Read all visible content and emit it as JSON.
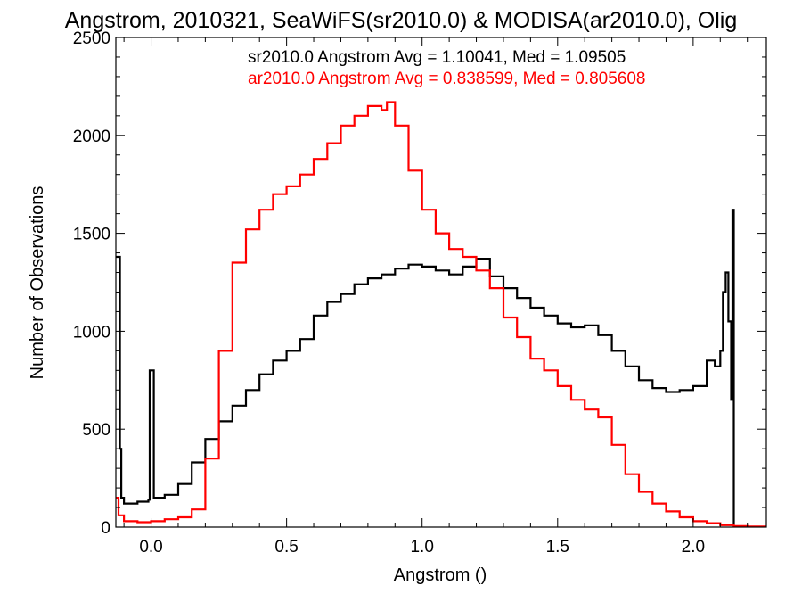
{
  "chart_data": {
    "type": "line",
    "subtype": "step-histogram",
    "title": "Angstrom, 2010321, SeaWiFS(sr2010.0) & MODISA(ar2010.0), Olig",
    "xlabel": "Angstrom ()",
    "ylabel": "Number of Observations",
    "xlim": [
      -0.13,
      2.27
    ],
    "ylim": [
      0,
      2500
    ],
    "x_ticks": [
      0.0,
      0.5,
      1.0,
      1.5,
      2.0
    ],
    "x_tick_labels": [
      "0.0",
      "0.5",
      "1.0",
      "1.5",
      "2.0"
    ],
    "y_ticks": [
      0,
      500,
      1000,
      1500,
      2000,
      2500
    ],
    "y_tick_labels": [
      "0",
      "500",
      "1000",
      "1500",
      "2000",
      "2500"
    ],
    "grid": false,
    "annotations": [
      {
        "text": "sr2010.0 Angstrom Avg = 1.10041, Med = 1.09505",
        "color": "#000000"
      },
      {
        "text": "ar2010.0 Angstrom Avg = 0.838599, Med = 0.805608",
        "color": "#ff0000"
      }
    ],
    "series": [
      {
        "color": "#000000",
        "points": [
          [
            -0.13,
            1380
          ],
          [
            -0.12,
            1380
          ],
          [
            -0.115,
            400
          ],
          [
            -0.11,
            150
          ],
          [
            -0.1,
            120
          ],
          [
            -0.05,
            130
          ],
          [
            -0.01,
            140
          ],
          [
            -0.005,
            800
          ],
          [
            0.005,
            800
          ],
          [
            0.01,
            150
          ],
          [
            0.05,
            165
          ],
          [
            0.1,
            220
          ],
          [
            0.15,
            330
          ],
          [
            0.2,
            450
          ],
          [
            0.25,
            540
          ],
          [
            0.3,
            620
          ],
          [
            0.35,
            700
          ],
          [
            0.4,
            780
          ],
          [
            0.45,
            850
          ],
          [
            0.5,
            900
          ],
          [
            0.55,
            960
          ],
          [
            0.6,
            1080
          ],
          [
            0.65,
            1150
          ],
          [
            0.7,
            1190
          ],
          [
            0.75,
            1240
          ],
          [
            0.8,
            1270
          ],
          [
            0.85,
            1290
          ],
          [
            0.9,
            1320
          ],
          [
            0.95,
            1340
          ],
          [
            1.0,
            1330
          ],
          [
            1.05,
            1310
          ],
          [
            1.1,
            1290
          ],
          [
            1.15,
            1330
          ],
          [
            1.2,
            1370
          ],
          [
            1.25,
            1280
          ],
          [
            1.3,
            1220
          ],
          [
            1.35,
            1170
          ],
          [
            1.4,
            1120
          ],
          [
            1.45,
            1080
          ],
          [
            1.5,
            1040
          ],
          [
            1.55,
            1020
          ],
          [
            1.6,
            1030
          ],
          [
            1.65,
            980
          ],
          [
            1.7,
            900
          ],
          [
            1.75,
            820
          ],
          [
            1.8,
            750
          ],
          [
            1.85,
            710
          ],
          [
            1.9,
            690
          ],
          [
            1.95,
            700
          ],
          [
            2.0,
            720
          ],
          [
            2.05,
            850
          ],
          [
            2.08,
            820
          ],
          [
            2.1,
            900
          ],
          [
            2.11,
            1200
          ],
          [
            2.12,
            1300
          ],
          [
            2.13,
            1050
          ],
          [
            2.14,
            650
          ],
          [
            2.145,
            1620
          ],
          [
            2.15,
            0
          ]
        ]
      },
      {
        "color": "#ff0000",
        "points": [
          [
            -0.13,
            150
          ],
          [
            -0.12,
            60
          ],
          [
            -0.1,
            30
          ],
          [
            -0.05,
            25
          ],
          [
            0.0,
            30
          ],
          [
            0.05,
            40
          ],
          [
            0.1,
            50
          ],
          [
            0.15,
            90
          ],
          [
            0.2,
            350
          ],
          [
            0.25,
            900
          ],
          [
            0.3,
            1350
          ],
          [
            0.35,
            1520
          ],
          [
            0.4,
            1620
          ],
          [
            0.45,
            1700
          ],
          [
            0.5,
            1740
          ],
          [
            0.55,
            1800
          ],
          [
            0.6,
            1880
          ],
          [
            0.65,
            1960
          ],
          [
            0.7,
            2050
          ],
          [
            0.75,
            2100
          ],
          [
            0.8,
            2150
          ],
          [
            0.85,
            2130
          ],
          [
            0.87,
            2170
          ],
          [
            0.9,
            2050
          ],
          [
            0.95,
            1820
          ],
          [
            1.0,
            1620
          ],
          [
            1.05,
            1500
          ],
          [
            1.1,
            1420
          ],
          [
            1.15,
            1380
          ],
          [
            1.2,
            1310
          ],
          [
            1.25,
            1220
          ],
          [
            1.3,
            1070
          ],
          [
            1.35,
            970
          ],
          [
            1.4,
            860
          ],
          [
            1.45,
            800
          ],
          [
            1.5,
            720
          ],
          [
            1.55,
            650
          ],
          [
            1.6,
            600
          ],
          [
            1.65,
            560
          ],
          [
            1.7,
            420
          ],
          [
            1.75,
            270
          ],
          [
            1.8,
            180
          ],
          [
            1.85,
            120
          ],
          [
            1.9,
            80
          ],
          [
            1.95,
            50
          ],
          [
            2.0,
            30
          ],
          [
            2.05,
            20
          ],
          [
            2.1,
            10
          ],
          [
            2.15,
            5
          ],
          [
            2.2,
            3
          ],
          [
            2.27,
            3
          ]
        ]
      }
    ]
  }
}
